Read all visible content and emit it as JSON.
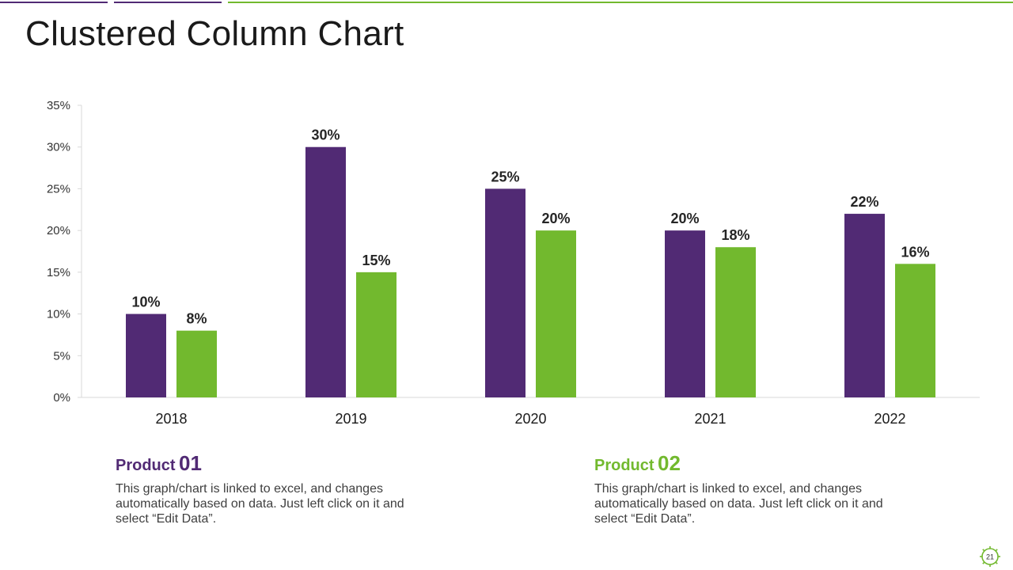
{
  "slide": {
    "title": "Clustered Column Chart",
    "page_number": "21"
  },
  "colors": {
    "purple": "#512A74",
    "green": "#72B92E",
    "axis": "#d9d9d9"
  },
  "chart_data": {
    "type": "bar",
    "title": "",
    "xlabel": "",
    "ylabel": "",
    "categories": [
      "2018",
      "2019",
      "2020",
      "2021",
      "2022"
    ],
    "series": [
      {
        "name": "Product 01",
        "values": [
          10,
          30,
          25,
          20,
          22
        ],
        "labels": [
          "10%",
          "30%",
          "25%",
          "20%",
          "22%"
        ]
      },
      {
        "name": "Product 02",
        "values": [
          8,
          15,
          20,
          18,
          16
        ],
        "labels": [
          "8%",
          "15%",
          "20%",
          "18%",
          "16%"
        ]
      }
    ],
    "ylim": [
      0,
      35
    ],
    "yticks": [
      0,
      5,
      10,
      15,
      20,
      25,
      30,
      35
    ],
    "ytick_labels": [
      "0%",
      "5%",
      "10%",
      "15%",
      "20%",
      "25%",
      "30%",
      "35%"
    ],
    "grid": false,
    "legend": "none"
  },
  "products": [
    {
      "word": "Product",
      "number": "01",
      "description": "This graph/chart is linked to excel, and changes automatically based on data. Just left click on it and select “Edit Data”."
    },
    {
      "word": "Product",
      "number": "02",
      "description": "This graph/chart is linked to excel, and changes automatically based on data. Just left click on it and select “Edit Data”."
    }
  ]
}
